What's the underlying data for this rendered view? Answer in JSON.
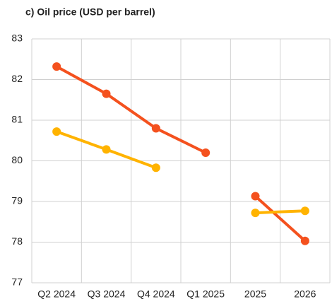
{
  "chart_data": {
    "type": "line",
    "title": "c) Oil price (USD per barrel)",
    "categories": [
      "Q2 2024",
      "Q3 2024",
      "Q4 2024",
      "Q1 2025",
      "2025",
      "2026"
    ],
    "series": [
      {
        "color": "#f4511e",
        "values": [
          82.32,
          81.65,
          80.8,
          80.2,
          null,
          null
        ]
      },
      {
        "color": "#ffb300",
        "values": [
          80.72,
          80.28,
          79.83,
          null,
          null,
          null
        ]
      },
      {
        "color": "#f4511e",
        "values": [
          null,
          null,
          null,
          null,
          79.13,
          78.03
        ]
      },
      {
        "color": "#ffb300",
        "values": [
          null,
          null,
          null,
          null,
          78.72,
          78.77
        ]
      }
    ],
    "ylim": [
      77,
      83
    ],
    "yticks": [
      77,
      78,
      79,
      80,
      81,
      82,
      83
    ],
    "grid": true
  }
}
